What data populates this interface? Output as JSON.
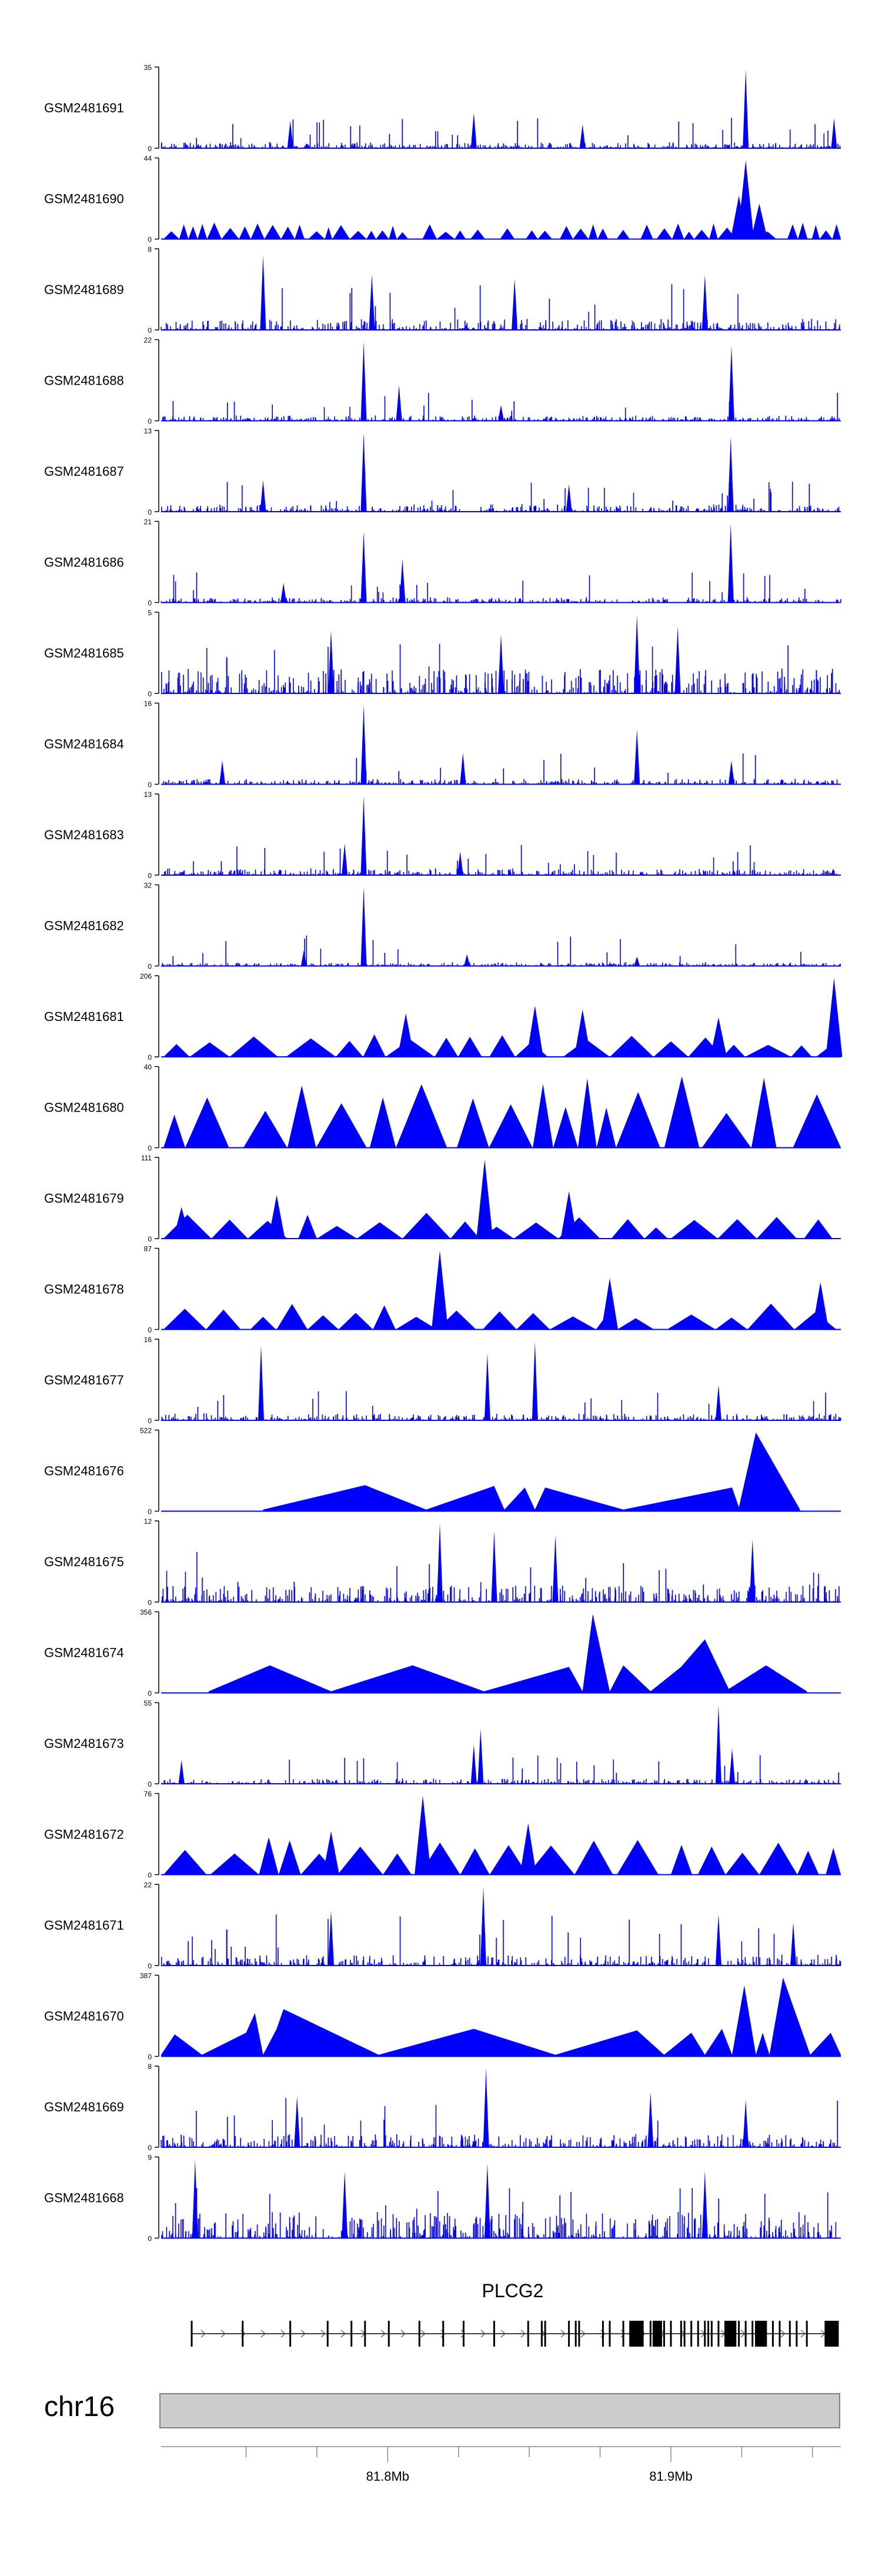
{
  "chart_data": {
    "type": "area",
    "title": "",
    "color": "#0000ff",
    "x_axis": {
      "chromosome": "chr16",
      "start_mb": 81.72,
      "end_mb": 81.96,
      "ticks": [
        {
          "value": 81.75,
          "label": ""
        },
        {
          "value": 81.775,
          "label": ""
        },
        {
          "value": 81.8,
          "label": "81.8Mb"
        },
        {
          "value": 81.825,
          "label": ""
        },
        {
          "value": 81.85,
          "label": ""
        },
        {
          "value": 81.875,
          "label": ""
        },
        {
          "value": 81.9,
          "label": "81.9Mb"
        },
        {
          "value": 81.925,
          "label": ""
        },
        {
          "value": 81.95,
          "label": ""
        }
      ]
    },
    "tracks": [
      {
        "name": "GSM2481691",
        "ymax": 35,
        "style": "spiky",
        "density": 0.9,
        "base": 0.06,
        "seed": 11,
        "peaks": [
          {
            "x": 0.86,
            "h": 1.0
          },
          {
            "x": 0.46,
            "h": 0.45
          },
          {
            "x": 0.19,
            "h": 0.35
          },
          {
            "x": 0.62,
            "h": 0.3
          },
          {
            "x": 0.99,
            "h": 0.38
          }
        ]
      },
      {
        "name": "GSM2481690",
        "ymax": 44,
        "style": "mixed",
        "density": 0.55,
        "base": 0.22,
        "seed": 12,
        "peaks": [
          {
            "x": 0.86,
            "h": 1.0
          },
          {
            "x": 0.85,
            "h": 0.55
          },
          {
            "x": 0.88,
            "h": 0.45
          }
        ]
      },
      {
        "name": "GSM2481689",
        "ymax": 8,
        "style": "spiky",
        "density": 0.95,
        "base": 0.12,
        "seed": 13,
        "peaks": [
          {
            "x": 0.15,
            "h": 0.95
          },
          {
            "x": 0.31,
            "h": 0.7
          },
          {
            "x": 0.52,
            "h": 0.65
          },
          {
            "x": 0.8,
            "h": 0.7
          }
        ]
      },
      {
        "name": "GSM2481688",
        "ymax": 22,
        "style": "spiky",
        "density": 0.85,
        "base": 0.05,
        "seed": 14,
        "peaks": [
          {
            "x": 0.298,
            "h": 1.0
          },
          {
            "x": 0.35,
            "h": 0.45
          },
          {
            "x": 0.839,
            "h": 0.95
          },
          {
            "x": 0.5,
            "h": 0.2
          }
        ]
      },
      {
        "name": "GSM2481687",
        "ymax": 13,
        "style": "spiky",
        "density": 0.9,
        "base": 0.08,
        "seed": 15,
        "peaks": [
          {
            "x": 0.298,
            "h": 1.0
          },
          {
            "x": 0.838,
            "h": 0.95
          },
          {
            "x": 0.15,
            "h": 0.4
          },
          {
            "x": 0.6,
            "h": 0.35
          }
        ]
      },
      {
        "name": "GSM2481686",
        "ymax": 21,
        "style": "spiky",
        "density": 0.85,
        "base": 0.05,
        "seed": 16,
        "peaks": [
          {
            "x": 0.298,
            "h": 0.9
          },
          {
            "x": 0.355,
            "h": 0.55
          },
          {
            "x": 0.838,
            "h": 1.0
          },
          {
            "x": 0.18,
            "h": 0.25
          }
        ]
      },
      {
        "name": "GSM2481685",
        "ymax": 5,
        "style": "spiky",
        "density": 1.0,
        "base": 0.3,
        "seed": 17,
        "peaks": [
          {
            "x": 0.7,
            "h": 1.0
          },
          {
            "x": 0.76,
            "h": 0.85
          },
          {
            "x": 0.25,
            "h": 0.8
          },
          {
            "x": 0.5,
            "h": 0.75
          }
        ]
      },
      {
        "name": "GSM2481684",
        "ymax": 16,
        "style": "spiky",
        "density": 0.85,
        "base": 0.05,
        "seed": 18,
        "peaks": [
          {
            "x": 0.298,
            "h": 1.0
          },
          {
            "x": 0.444,
            "h": 0.4
          },
          {
            "x": 0.7,
            "h": 0.7
          },
          {
            "x": 0.839,
            "h": 0.3
          },
          {
            "x": 0.09,
            "h": 0.3
          }
        ]
      },
      {
        "name": "GSM2481683",
        "ymax": 13,
        "style": "spiky",
        "density": 0.85,
        "base": 0.07,
        "seed": 19,
        "peaks": [
          {
            "x": 0.298,
            "h": 1.0
          },
          {
            "x": 0.27,
            "h": 0.4
          },
          {
            "x": 0.44,
            "h": 0.3
          }
        ]
      },
      {
        "name": "GSM2481682",
        "ymax": 32,
        "style": "spiky",
        "density": 0.8,
        "base": 0.03,
        "seed": 20,
        "peaks": [
          {
            "x": 0.298,
            "h": 1.0
          },
          {
            "x": 0.21,
            "h": 0.2
          },
          {
            "x": 0.45,
            "h": 0.15
          },
          {
            "x": 0.7,
            "h": 0.12
          }
        ]
      },
      {
        "name": "GSM2481681",
        "ymax": 206,
        "style": "triangles",
        "density": 0.2,
        "base": 0.3,
        "seed": 21,
        "peaks": [
          {
            "x": 0.55,
            "h": 0.65
          },
          {
            "x": 0.62,
            "h": 0.6
          },
          {
            "x": 0.36,
            "h": 0.55
          },
          {
            "x": 0.82,
            "h": 0.5
          },
          {
            "x": 0.99,
            "h": 1.0
          }
        ]
      },
      {
        "name": "GSM2481680",
        "ymax": 40,
        "style": "triangles",
        "density": 0.16,
        "base": 0.98,
        "seed": 22,
        "peaks": []
      },
      {
        "name": "GSM2481679",
        "ymax": 111,
        "style": "triangles",
        "density": 0.3,
        "base": 0.35,
        "seed": 23,
        "peaks": [
          {
            "x": 0.476,
            "h": 1.0
          },
          {
            "x": 0.17,
            "h": 0.55
          },
          {
            "x": 0.6,
            "h": 0.6
          },
          {
            "x": 0.03,
            "h": 0.4
          }
        ]
      },
      {
        "name": "GSM2481678",
        "ymax": 87,
        "style": "triangles",
        "density": 0.28,
        "base": 0.35,
        "seed": 24,
        "peaks": [
          {
            "x": 0.41,
            "h": 1.0
          },
          {
            "x": 0.66,
            "h": 0.65
          },
          {
            "x": 0.97,
            "h": 0.6
          }
        ]
      },
      {
        "name": "GSM2481677",
        "ymax": 16,
        "style": "spiky",
        "density": 0.85,
        "base": 0.07,
        "seed": 25,
        "peaks": [
          {
            "x": 0.147,
            "h": 0.95
          },
          {
            "x": 0.48,
            "h": 0.85
          },
          {
            "x": 0.55,
            "h": 1.0
          },
          {
            "x": 0.82,
            "h": 0.45
          }
        ]
      },
      {
        "name": "GSM2481676",
        "ymax": 522,
        "style": "peaks_only",
        "density": 0,
        "base": 0,
        "seed": 26,
        "peaks": [
          {
            "x": 0.15,
            "h": 0.02
          },
          {
            "x": 0.3,
            "h": 0.33
          },
          {
            "x": 0.39,
            "h": 0.02
          },
          {
            "x": 0.49,
            "h": 0.32
          },
          {
            "x": 0.505,
            "h": 0.02
          },
          {
            "x": 0.535,
            "h": 0.3
          },
          {
            "x": 0.55,
            "h": 0.02
          },
          {
            "x": 0.565,
            "h": 0.3
          },
          {
            "x": 0.68,
            "h": 0.02
          },
          {
            "x": 0.84,
            "h": 0.3
          },
          {
            "x": 0.85,
            "h": 0.05
          },
          {
            "x": 0.875,
            "h": 1.0
          },
          {
            "x": 0.94,
            "h": 0.02
          }
        ]
      },
      {
        "name": "GSM2481675",
        "ymax": 12,
        "style": "spiky",
        "density": 1.0,
        "base": 0.2,
        "seed": 27,
        "peaks": [
          {
            "x": 0.41,
            "h": 1.0
          },
          {
            "x": 0.49,
            "h": 0.9
          },
          {
            "x": 0.58,
            "h": 0.85
          },
          {
            "x": 0.87,
            "h": 0.8
          }
        ]
      },
      {
        "name": "GSM2481674",
        "ymax": 356,
        "style": "peaks_only",
        "density": 0,
        "base": 0,
        "seed": 28,
        "peaks": [
          {
            "x": 0.07,
            "h": 0.02
          },
          {
            "x": 0.16,
            "h": 0.35
          },
          {
            "x": 0.25,
            "h": 0.02
          },
          {
            "x": 0.37,
            "h": 0.35
          },
          {
            "x": 0.475,
            "h": 0.02
          },
          {
            "x": 0.6,
            "h": 0.33
          },
          {
            "x": 0.62,
            "h": 0.02
          },
          {
            "x": 0.635,
            "h": 1.0
          },
          {
            "x": 0.66,
            "h": 0.02
          },
          {
            "x": 0.68,
            "h": 0.35
          },
          {
            "x": 0.72,
            "h": 0.02
          },
          {
            "x": 0.765,
            "h": 0.33
          },
          {
            "x": 0.8,
            "h": 0.68
          },
          {
            "x": 0.835,
            "h": 0.05
          },
          {
            "x": 0.89,
            "h": 0.35
          },
          {
            "x": 0.95,
            "h": 0.02
          }
        ]
      },
      {
        "name": "GSM2481673",
        "ymax": 55,
        "style": "spiky",
        "density": 0.8,
        "base": 0.05,
        "seed": 29,
        "peaks": [
          {
            "x": 0.47,
            "h": 0.7
          },
          {
            "x": 0.46,
            "h": 0.5
          },
          {
            "x": 0.82,
            "h": 1.0
          },
          {
            "x": 0.84,
            "h": 0.45
          },
          {
            "x": 0.03,
            "h": 0.3
          }
        ]
      },
      {
        "name": "GSM2481672",
        "ymax": 76,
        "style": "triangles",
        "density": 0.35,
        "base": 0.5,
        "seed": 30,
        "peaks": [
          {
            "x": 0.385,
            "h": 1.0
          },
          {
            "x": 0.54,
            "h": 0.65
          },
          {
            "x": 0.25,
            "h": 0.55
          }
        ]
      },
      {
        "name": "GSM2481671",
        "ymax": 22,
        "style": "spiky",
        "density": 0.9,
        "base": 0.12,
        "seed": 31,
        "peaks": [
          {
            "x": 0.474,
            "h": 1.0
          },
          {
            "x": 0.25,
            "h": 0.7
          },
          {
            "x": 0.82,
            "h": 0.65
          },
          {
            "x": 0.93,
            "h": 0.55
          }
        ]
      },
      {
        "name": "GSM2481670",
        "ymax": 387,
        "style": "peaks_only",
        "density": 0,
        "base": 0,
        "seed": 32,
        "peaks": [
          {
            "x": 0.0,
            "h": 0.02
          },
          {
            "x": 0.02,
            "h": 0.28
          },
          {
            "x": 0.06,
            "h": 0.02
          },
          {
            "x": 0.125,
            "h": 0.3
          },
          {
            "x": 0.138,
            "h": 0.55
          },
          {
            "x": 0.15,
            "h": 0.02
          },
          {
            "x": 0.17,
            "h": 0.35
          },
          {
            "x": 0.18,
            "h": 0.6
          },
          {
            "x": 0.32,
            "h": 0.02
          },
          {
            "x": 0.46,
            "h": 0.35
          },
          {
            "x": 0.58,
            "h": 0.02
          },
          {
            "x": 0.7,
            "h": 0.33
          },
          {
            "x": 0.74,
            "h": 0.02
          },
          {
            "x": 0.78,
            "h": 0.3
          },
          {
            "x": 0.8,
            "h": 0.02
          },
          {
            "x": 0.825,
            "h": 0.35
          },
          {
            "x": 0.84,
            "h": 0.02
          },
          {
            "x": 0.858,
            "h": 0.9
          },
          {
            "x": 0.875,
            "h": 0.02
          },
          {
            "x": 0.885,
            "h": 0.3
          },
          {
            "x": 0.895,
            "h": 0.02
          },
          {
            "x": 0.915,
            "h": 1.0
          },
          {
            "x": 0.955,
            "h": 0.02
          },
          {
            "x": 0.985,
            "h": 0.3
          },
          {
            "x": 1.0,
            "h": 0.02
          }
        ]
      },
      {
        "name": "GSM2481669",
        "ymax": 8,
        "style": "spiky",
        "density": 0.95,
        "base": 0.15,
        "seed": 33,
        "peaks": [
          {
            "x": 0.478,
            "h": 1.0
          },
          {
            "x": 0.2,
            "h": 0.65
          },
          {
            "x": 0.72,
            "h": 0.7
          },
          {
            "x": 0.86,
            "h": 0.6
          }
        ]
      },
      {
        "name": "GSM2481668",
        "ymax": 9,
        "style": "spiky",
        "density": 1.0,
        "base": 0.32,
        "seed": 34,
        "peaks": [
          {
            "x": 0.05,
            "h": 1.0
          },
          {
            "x": 0.48,
            "h": 0.95
          },
          {
            "x": 0.27,
            "h": 0.85
          },
          {
            "x": 0.8,
            "h": 0.85
          }
        ]
      }
    ],
    "gene": {
      "name": "PLCG2",
      "start_frac": 0.045,
      "end_frac": 0.99,
      "exons": [
        0.045,
        0.12,
        0.19,
        0.245,
        0.28,
        0.3,
        0.335,
        0.38,
        0.415,
        0.445,
        0.49,
        0.54,
        0.56,
        0.565,
        0.6,
        0.61,
        0.615,
        0.65,
        0.66,
        0.68,
        0.69,
        0.7,
        0.705,
        0.72,
        0.73,
        0.74,
        0.75,
        0.765,
        0.77,
        0.78,
        0.79,
        0.8,
        0.805,
        0.81,
        0.82,
        0.83,
        0.84,
        0.845,
        0.85,
        0.86,
        0.87,
        0.875,
        0.89,
        0.9,
        0.91,
        0.925,
        0.935,
        0.95
      ],
      "thick_exons": [
        0.698,
        0.703,
        0.73,
        0.838,
        0.883,
        0.983,
        0.99
      ]
    },
    "ideogram": {
      "label": "chr16"
    }
  }
}
